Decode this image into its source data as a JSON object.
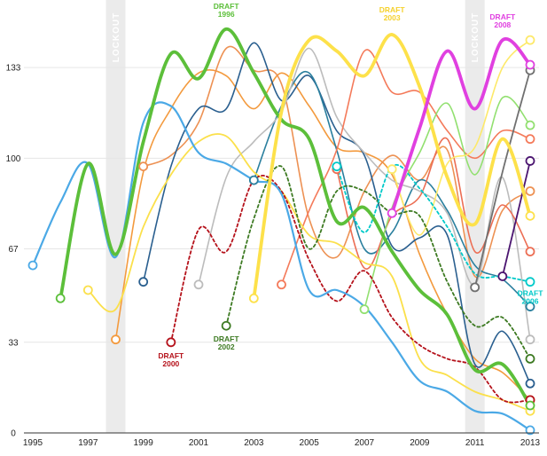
{
  "chart_data": {
    "type": "line",
    "title": "",
    "xlabel": "",
    "ylabel": "",
    "xlim": [
      1995,
      2013
    ],
    "ylim": [
      0,
      155
    ],
    "x_ticks": [
      "1995",
      "1997",
      "1999",
      "2001",
      "2003",
      "2005",
      "2007",
      "2009",
      "2011",
      "2013"
    ],
    "y_ticks": [
      "0",
      "33",
      "67",
      "100",
      "133"
    ],
    "y_tick_values": [
      0,
      33,
      67,
      100,
      133
    ],
    "grid": true,
    "shaded_periods": [
      {
        "label": "LOCKOUT",
        "x": 1998
      },
      {
        "label": "LOCKOUT",
        "x": 2011
      }
    ],
    "annotations": [
      {
        "series": "Draft 1996",
        "lines": [
          "DRAFT",
          "1996"
        ],
        "color": "#5cbf3a"
      },
      {
        "series": "Draft 2000",
        "lines": [
          "DRAFT",
          "2000"
        ],
        "color": "#b5121b"
      },
      {
        "series": "Draft 2002",
        "lines": [
          "DRAFT",
          "2002"
        ],
        "color": "#3d7a22"
      },
      {
        "series": "Draft 2003",
        "lines": [
          "DRAFT",
          "2003"
        ],
        "color": "#f5d12c"
      },
      {
        "series": "Draft 2006",
        "lines": [
          "DRAFT",
          "2006"
        ],
        "color": "#00c9c9"
      },
      {
        "series": "Draft 2008",
        "lines": [
          "DRAFT",
          "2008"
        ],
        "color": "#e040e0"
      }
    ],
    "series": [
      {
        "color": "#4ba9e6",
        "width": 2.2,
        "values": [
          [
            1995,
            61
          ],
          [
            1996,
            84
          ],
          [
            1997,
            98
          ],
          [
            1998,
            64
          ],
          [
            1999,
            113
          ],
          [
            2000,
            119
          ],
          [
            2001,
            102
          ],
          [
            2002,
            98
          ],
          [
            2003,
            92
          ],
          [
            2004,
            87
          ],
          [
            2005,
            52
          ],
          [
            2006,
            52
          ],
          [
            2007,
            46
          ],
          [
            2008,
            33
          ],
          [
            2009,
            19
          ],
          [
            2010,
            15
          ],
          [
            2011,
            8
          ],
          [
            2012,
            7
          ],
          [
            2013,
            1
          ]
        ]
      },
      {
        "name": "Draft 1996",
        "color": "#5cbf3a",
        "width": 3.8,
        "values": [
          [
            1996,
            49
          ],
          [
            1997,
            98
          ],
          [
            1998,
            65
          ],
          [
            1999,
            106
          ],
          [
            2000,
            138
          ],
          [
            2001,
            129
          ],
          [
            2002,
            147
          ],
          [
            2003,
            131
          ],
          [
            2004,
            114
          ],
          [
            2005,
            107
          ],
          [
            2006,
            77
          ],
          [
            2007,
            82
          ],
          [
            2008,
            66
          ],
          [
            2009,
            52
          ],
          [
            2010,
            43
          ],
          [
            2011,
            23
          ],
          [
            2012,
            25
          ],
          [
            2013,
            10
          ]
        ]
      },
      {
        "color": "#fbe04b",
        "width": 1.8,
        "values": [
          [
            1997,
            52
          ],
          [
            1998,
            45
          ],
          [
            1999,
            75
          ],
          [
            2000,
            94
          ],
          [
            2001,
            106
          ],
          [
            2002,
            108
          ],
          [
            2003,
            95
          ],
          [
            2004,
            88
          ],
          [
            2005,
            72
          ],
          [
            2006,
            69
          ],
          [
            2007,
            62
          ],
          [
            2008,
            57
          ],
          [
            2009,
            27
          ],
          [
            2010,
            21
          ],
          [
            2011,
            15
          ],
          [
            2012,
            12
          ],
          [
            2013,
            8
          ]
        ]
      },
      {
        "color": "#f39a3e",
        "width": 1.6,
        "values": [
          [
            1998,
            34
          ],
          [
            1999,
            95
          ],
          [
            2000,
            118
          ],
          [
            2001,
            131
          ],
          [
            2002,
            130
          ],
          [
            2003,
            118
          ],
          [
            2004,
            131
          ],
          [
            2005,
            119
          ],
          [
            2006,
            104
          ],
          [
            2007,
            102
          ],
          [
            2008,
            94
          ],
          [
            2009,
            65
          ],
          [
            2010,
            43
          ],
          [
            2011,
            27
          ],
          [
            2012,
            22
          ],
          [
            2013,
            12
          ]
        ]
      },
      {
        "color": "#ed9153",
        "width": 1.6,
        "values": [
          [
            1999,
            97
          ],
          [
            2000,
            101
          ],
          [
            2001,
            113
          ],
          [
            2002,
            140
          ],
          [
            2003,
            132
          ],
          [
            2004,
            127
          ],
          [
            2005,
            78
          ],
          [
            2006,
            64
          ],
          [
            2007,
            88
          ],
          [
            2008,
            101
          ],
          [
            2009,
            92
          ],
          [
            2010,
            103
          ],
          [
            2011,
            57
          ],
          [
            2012,
            81
          ],
          [
            2013,
            88
          ]
        ]
      },
      {
        "color": "#2a5f8f",
        "width": 1.6,
        "values": [
          [
            1999,
            55
          ],
          [
            2000,
            97
          ],
          [
            2001,
            118
          ],
          [
            2002,
            118
          ],
          [
            2003,
            142
          ],
          [
            2004,
            121
          ],
          [
            2005,
            130
          ],
          [
            2006,
            110
          ],
          [
            2007,
            101
          ],
          [
            2008,
            68
          ],
          [
            2009,
            71
          ],
          [
            2010,
            72
          ],
          [
            2011,
            25
          ],
          [
            2012,
            37
          ],
          [
            2013,
            18
          ]
        ]
      },
      {
        "color": "#2a7f9e",
        "width": 1.6,
        "values": [
          [
            2003,
            92
          ],
          [
            2004,
            119
          ],
          [
            2005,
            131
          ],
          [
            2006,
            103
          ],
          [
            2007,
            67
          ],
          [
            2008,
            73
          ],
          [
            2009,
            92
          ],
          [
            2010,
            81
          ],
          [
            2011,
            61
          ],
          [
            2012,
            56
          ],
          [
            2013,
            46
          ]
        ]
      },
      {
        "color": "#bcbcbc",
        "width": 1.6,
        "values": [
          [
            2001,
            54
          ],
          [
            2002,
            93
          ],
          [
            2003,
            106
          ],
          [
            2004,
            117
          ],
          [
            2005,
            140
          ],
          [
            2006,
            115
          ],
          [
            2007,
            102
          ],
          [
            2008,
            92
          ],
          [
            2009,
            88
          ],
          [
            2010,
            80
          ],
          [
            2011,
            54
          ],
          [
            2012,
            93
          ],
          [
            2013,
            34
          ]
        ]
      },
      {
        "color": "#f47a5a",
        "width": 1.6,
        "values": [
          [
            2004,
            54
          ],
          [
            2005,
            81
          ],
          [
            2006,
            103
          ],
          [
            2007,
            139
          ],
          [
            2008,
            124
          ],
          [
            2009,
            124
          ],
          [
            2010,
            110
          ],
          [
            2011,
            100
          ],
          [
            2012,
            110
          ],
          [
            2013,
            107
          ]
        ]
      },
      {
        "name": "Draft 2000",
        "color": "#b5121b",
        "width": 1.8,
        "dashed": true,
        "values": [
          [
            2000,
            33
          ],
          [
            2001,
            74
          ],
          [
            2002,
            66
          ],
          [
            2003,
            92
          ],
          [
            2004,
            88
          ],
          [
            2005,
            63
          ],
          [
            2006,
            48
          ],
          [
            2007,
            59
          ],
          [
            2008,
            42
          ],
          [
            2009,
            32
          ],
          [
            2010,
            27
          ],
          [
            2011,
            24
          ],
          [
            2012,
            12
          ],
          [
            2013,
            12
          ]
        ]
      },
      {
        "name": "Draft 2002",
        "color": "#3d7a22",
        "width": 1.8,
        "dashed": true,
        "values": [
          [
            2002,
            39
          ],
          [
            2003,
            78
          ],
          [
            2004,
            97
          ],
          [
            2005,
            67
          ],
          [
            2006,
            88
          ],
          [
            2007,
            88
          ],
          [
            2008,
            80
          ],
          [
            2009,
            79
          ],
          [
            2010,
            55
          ],
          [
            2011,
            39
          ],
          [
            2012,
            42
          ],
          [
            2013,
            27
          ]
        ]
      },
      {
        "name": "Draft 2003",
        "color": "#fde14a",
        "width": 3.8,
        "values": [
          [
            2003,
            49
          ],
          [
            2004,
            117
          ],
          [
            2005,
            143
          ],
          [
            2006,
            139
          ],
          [
            2007,
            130
          ],
          [
            2008,
            145
          ],
          [
            2009,
            126
          ],
          [
            2010,
            93
          ],
          [
            2011,
            76
          ],
          [
            2012,
            107
          ],
          [
            2013,
            79
          ]
        ]
      },
      {
        "color": "#ec6e54",
        "width": 1.6,
        "values": [
          [
            2006,
            96
          ],
          [
            2007,
            60
          ],
          [
            2008,
            79
          ],
          [
            2009,
            86
          ],
          [
            2010,
            107
          ],
          [
            2011,
            66
          ],
          [
            2012,
            83
          ],
          [
            2013,
            66
          ]
        ]
      },
      {
        "color": "#92e070",
        "width": 1.6,
        "values": [
          [
            2007,
            45
          ],
          [
            2008,
            82
          ],
          [
            2009,
            102
          ],
          [
            2010,
            120
          ],
          [
            2011,
            94
          ],
          [
            2012,
            122
          ],
          [
            2013,
            112
          ]
        ]
      },
      {
        "name": "Draft 2006",
        "color": "#00c9c9",
        "width": 1.8,
        "dashed": true,
        "values": [
          [
            2006,
            97
          ],
          [
            2007,
            73
          ],
          [
            2008,
            97
          ],
          [
            2009,
            89
          ],
          [
            2010,
            75
          ],
          [
            2011,
            58
          ],
          [
            2012,
            57
          ],
          [
            2013,
            55
          ]
        ]
      },
      {
        "color": "#fde969",
        "width": 1.6,
        "values": [
          [
            2008,
            96
          ],
          [
            2009,
            72
          ],
          [
            2010,
            98
          ],
          [
            2011,
            104
          ],
          [
            2012,
            133
          ],
          [
            2013,
            143
          ]
        ]
      },
      {
        "color": "#707070",
        "width": 1.8,
        "values": [
          [
            2011,
            53
          ],
          [
            2012,
            95
          ],
          [
            2013,
            132
          ]
        ]
      },
      {
        "color": "#4b1570",
        "width": 1.8,
        "values": [
          [
            2012,
            57
          ],
          [
            2013,
            99
          ]
        ]
      },
      {
        "name": "Draft 2008",
        "color": "#e040e0",
        "width": 3.8,
        "values": [
          [
            2008,
            80
          ],
          [
            2009,
            111
          ],
          [
            2010,
            139
          ],
          [
            2011,
            118
          ],
          [
            2012,
            143
          ],
          [
            2013,
            134
          ]
        ]
      }
    ]
  }
}
